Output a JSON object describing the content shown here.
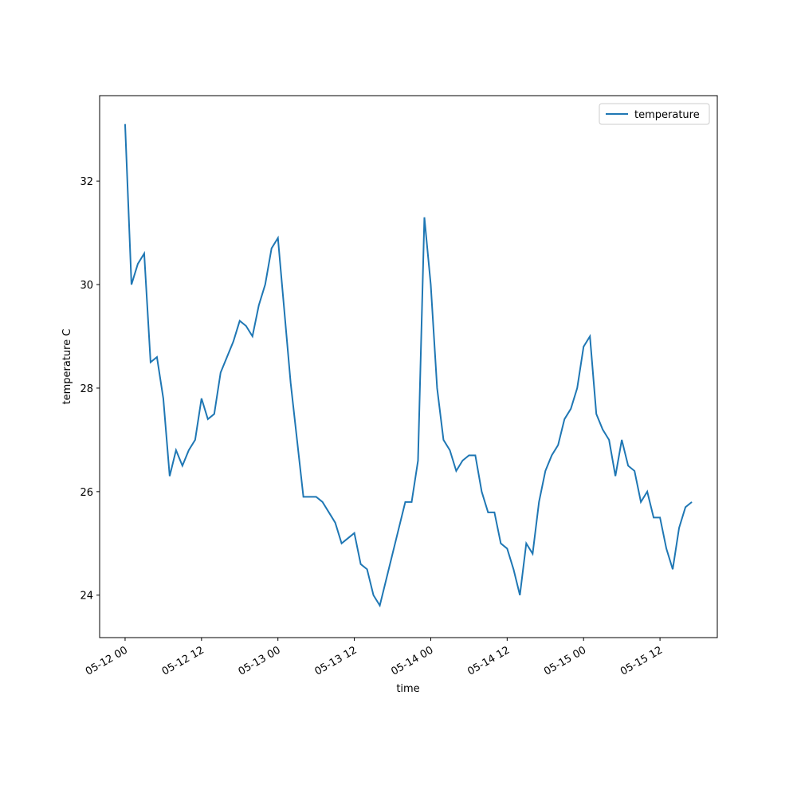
{
  "chart_data": {
    "type": "line",
    "xlabel": "time",
    "ylabel": "temperature C",
    "x": [
      "05-12 00",
      "05-12 01",
      "05-12 02",
      "05-12 03",
      "05-12 04",
      "05-12 05",
      "05-12 06",
      "05-12 07",
      "05-12 08",
      "05-12 09",
      "05-12 10",
      "05-12 11",
      "05-12 12",
      "05-12 13",
      "05-12 14",
      "05-12 15",
      "05-12 16",
      "05-12 17",
      "05-12 18",
      "05-12 19",
      "05-12 20",
      "05-12 21",
      "05-12 22",
      "05-12 23",
      "05-13 00",
      "05-13 01",
      "05-13 02",
      "05-13 03",
      "05-13 04",
      "05-13 05",
      "05-13 06",
      "05-13 07",
      "05-13 08",
      "05-13 09",
      "05-13 10",
      "05-13 11",
      "05-13 12",
      "05-13 13",
      "05-13 14",
      "05-13 15",
      "05-13 16",
      "05-13 17",
      "05-13 18",
      "05-13 19",
      "05-13 20",
      "05-13 21",
      "05-13 22",
      "05-13 23",
      "05-14 00",
      "05-14 01",
      "05-14 02",
      "05-14 03",
      "05-14 04",
      "05-14 05",
      "05-14 06",
      "05-14 07",
      "05-14 08",
      "05-14 09",
      "05-14 10",
      "05-14 11",
      "05-14 12",
      "05-14 13",
      "05-14 14",
      "05-14 15",
      "05-14 16",
      "05-14 17",
      "05-14 18",
      "05-14 19",
      "05-14 20",
      "05-14 21",
      "05-14 22",
      "05-14 23",
      "05-15 00",
      "05-15 01",
      "05-15 02",
      "05-15 03",
      "05-15 04",
      "05-15 05",
      "05-15 06",
      "05-15 07",
      "05-15 08",
      "05-15 09",
      "05-15 10",
      "05-15 11",
      "05-15 12",
      "05-15 13",
      "05-15 14",
      "05-15 15",
      "05-15 16",
      "05-15 17"
    ],
    "series": [
      {
        "name": "temperature",
        "color": "#1f77b4",
        "values": [
          33.1,
          30.0,
          30.4,
          30.6,
          28.5,
          28.6,
          27.8,
          26.3,
          26.8,
          26.5,
          26.8,
          27.0,
          27.8,
          27.4,
          27.5,
          28.3,
          28.6,
          28.9,
          29.3,
          29.2,
          29.0,
          29.6,
          30.0,
          30.7,
          30.9,
          29.5,
          28.1,
          27.0,
          25.9,
          25.9,
          25.9,
          25.8,
          25.6,
          25.4,
          25.0,
          25.1,
          25.2,
          24.6,
          24.5,
          24.0,
          23.8,
          24.3,
          24.8,
          25.3,
          25.8,
          25.8,
          26.6,
          31.3,
          30.0,
          28.0,
          27.0,
          26.8,
          26.4,
          26.6,
          26.7,
          26.7,
          26.0,
          25.6,
          25.6,
          25.0,
          24.9,
          24.5,
          24.0,
          25.0,
          24.8,
          25.8,
          26.4,
          26.7,
          26.9,
          27.4,
          27.6,
          28.0,
          28.8,
          29.0,
          27.5,
          27.2,
          27.0,
          26.3,
          27.0,
          26.5,
          26.4,
          25.8,
          26.0,
          25.5,
          25.5,
          24.9,
          24.5,
          25.3,
          25.7,
          25.8
        ]
      }
    ],
    "xlim": [
      "05-11 20",
      "05-15 21"
    ],
    "xticks": [
      "05-12 00",
      "05-12 12",
      "05-13 00",
      "05-13 12",
      "05-14 00",
      "05-14 12",
      "05-15 00",
      "05-15 12"
    ],
    "ylim": [
      23.18,
      33.65
    ],
    "yticks": [
      24,
      26,
      28,
      30,
      32
    ],
    "legend": "upper right"
  }
}
